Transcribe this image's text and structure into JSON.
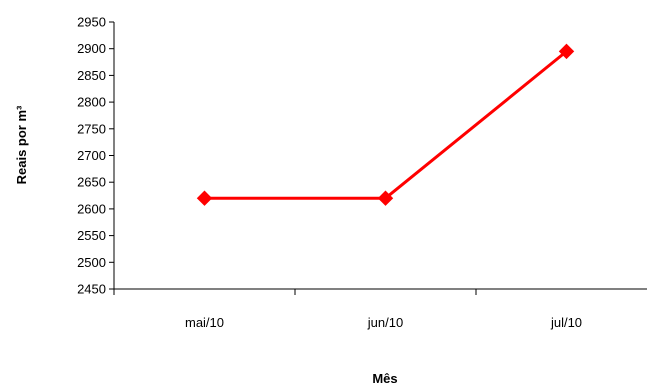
{
  "chart_data": {
    "type": "line",
    "title": "",
    "xlabel": "Mês",
    "ylabel": "Reais por m³",
    "categories": [
      "mai/10",
      "jun/10",
      "jul/10"
    ],
    "series": [
      {
        "values": [
          2620,
          2620,
          2895
        ],
        "color": "#ff0000",
        "marker": "diamond"
      }
    ],
    "ylim": [
      2450,
      2950
    ],
    "yticks": [
      2450,
      2500,
      2550,
      2600,
      2650,
      2700,
      2750,
      2800,
      2850,
      2900,
      2950
    ],
    "grid": false,
    "legend": "none"
  }
}
